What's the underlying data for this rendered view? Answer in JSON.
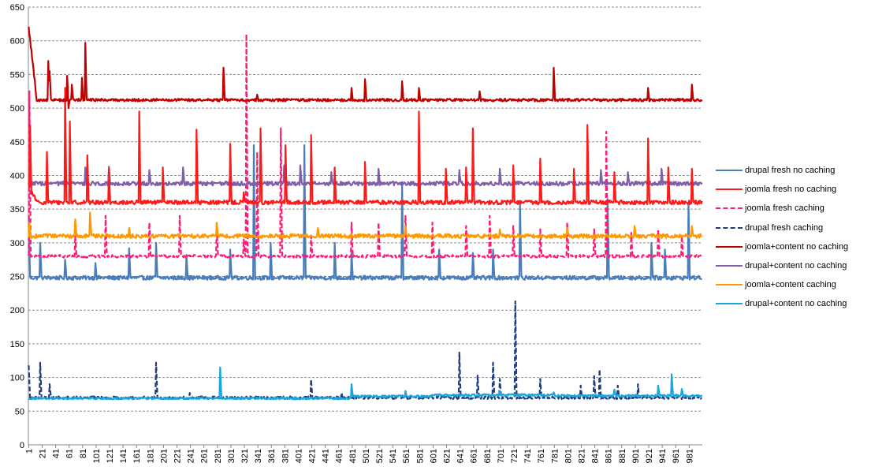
{
  "chart_data": {
    "type": "line",
    "title": "",
    "xlabel": "",
    "ylabel": "",
    "ylim": [
      0,
      650
    ],
    "y_ticks": [
      "0",
      "50",
      "100",
      "150",
      "200",
      "250",
      "300",
      "350",
      "400",
      "450",
      "500",
      "550",
      "600",
      "650"
    ],
    "x_range": [
      1,
      1000
    ],
    "x_tick_labels": [
      "1",
      "21",
      "41",
      "61",
      "81",
      "101",
      "121",
      "141",
      "161",
      "181",
      "201",
      "221",
      "241",
      "261",
      "281",
      "301",
      "321",
      "341",
      "361",
      "381",
      "401",
      "421",
      "441",
      "461",
      "481",
      "501",
      "521",
      "541",
      "561",
      "581",
      "601",
      "621",
      "641",
      "661",
      "681",
      "701",
      "721",
      "741",
      "761",
      "781",
      "801",
      "821",
      "841",
      "861",
      "881",
      "901",
      "921",
      "941",
      "961",
      "981"
    ],
    "grid": "horizontal dashed",
    "legend_position": "right",
    "series": [
      {
        "name": "drupal fresh no caching",
        "color": "#4a7ebb",
        "dash": false,
        "baseline": 248,
        "noise": 3,
        "spikes": [
          [
            1,
            340
          ],
          [
            18,
            300
          ],
          [
            55,
            275
          ],
          [
            100,
            270
          ],
          [
            150,
            292
          ],
          [
            190,
            300
          ],
          [
            235,
            282
          ],
          [
            300,
            290
          ],
          [
            335,
            445
          ],
          [
            360,
            300
          ],
          [
            410,
            445
          ],
          [
            455,
            300
          ],
          [
            480,
            285
          ],
          [
            555,
            390
          ],
          [
            610,
            290
          ],
          [
            660,
            285
          ],
          [
            690,
            290
          ],
          [
            730,
            360
          ],
          [
            860,
            365
          ],
          [
            925,
            300
          ],
          [
            945,
            290
          ],
          [
            980,
            360
          ]
        ]
      },
      {
        "name": "joomla fresh no caching",
        "color": "#ff1a1a",
        "dash": false,
        "baseline": 360,
        "noise": 3,
        "start": 385,
        "spikes": [
          [
            3,
            475
          ],
          [
            28,
            435
          ],
          [
            55,
            530
          ],
          [
            62,
            480
          ],
          [
            88,
            430
          ],
          [
            120,
            410
          ],
          [
            165,
            495
          ],
          [
            200,
            412
          ],
          [
            250,
            468
          ],
          [
            300,
            447
          ],
          [
            320,
            375
          ],
          [
            345,
            470
          ],
          [
            382,
            445
          ],
          [
            420,
            460
          ],
          [
            455,
            412
          ],
          [
            500,
            420
          ],
          [
            580,
            495
          ],
          [
            620,
            410
          ],
          [
            650,
            412
          ],
          [
            660,
            470
          ],
          [
            720,
            415
          ],
          [
            760,
            425
          ],
          [
            810,
            410
          ],
          [
            830,
            475
          ],
          [
            870,
            405
          ],
          [
            920,
            455
          ],
          [
            950,
            412
          ],
          [
            985,
            410
          ]
        ]
      },
      {
        "name": "joomla fresh caching",
        "color": "#ff1a75",
        "dash": true,
        "baseline": 280,
        "noise": 2,
        "spikes": [
          [
            2,
            525
          ],
          [
            70,
            310
          ],
          [
            115,
            340
          ],
          [
            180,
            330
          ],
          [
            225,
            340
          ],
          [
            280,
            320
          ],
          [
            320,
            305
          ],
          [
            324,
            610
          ],
          [
            340,
            435
          ],
          [
            375,
            470
          ],
          [
            420,
            310
          ],
          [
            480,
            330
          ],
          [
            520,
            330
          ],
          [
            560,
            340
          ],
          [
            600,
            330
          ],
          [
            650,
            325
          ],
          [
            685,
            340
          ],
          [
            720,
            325
          ],
          [
            760,
            320
          ],
          [
            800,
            330
          ],
          [
            840,
            320
          ],
          [
            858,
            465
          ],
          [
            895,
            315
          ],
          [
            935,
            320
          ],
          [
            970,
            310
          ]
        ]
      },
      {
        "name": "drupal fresh caching",
        "color": "#1f3d7a",
        "dash": true,
        "baseline": 70,
        "noise": 2,
        "spikes": [
          [
            1,
            118
          ],
          [
            18,
            122
          ],
          [
            32,
            90
          ],
          [
            190,
            122
          ],
          [
            240,
            77
          ],
          [
            420,
            97
          ],
          [
            465,
            77
          ],
          [
            640,
            137
          ],
          [
            667,
            103
          ],
          [
            690,
            122
          ],
          [
            700,
            98
          ],
          [
            723,
            213
          ],
          [
            760,
            98
          ],
          [
            820,
            88
          ],
          [
            840,
            102
          ],
          [
            848,
            112
          ],
          [
            875,
            88
          ],
          [
            905,
            90
          ]
        ]
      },
      {
        "name": "joomla+content no caching",
        "color": "#c00000",
        "dash": false,
        "baseline": 512,
        "noise": 2,
        "start": 620,
        "spikes": [
          [
            30,
            570
          ],
          [
            32,
            555
          ],
          [
            58,
            548
          ],
          [
            60,
            500
          ],
          [
            65,
            535
          ],
          [
            80,
            545
          ],
          [
            85,
            597
          ],
          [
            290,
            560
          ],
          [
            340,
            520
          ],
          [
            480,
            530
          ],
          [
            500,
            543
          ],
          [
            555,
            540
          ],
          [
            580,
            530
          ],
          [
            670,
            525
          ],
          [
            780,
            560
          ],
          [
            920,
            530
          ],
          [
            985,
            535
          ]
        ]
      },
      {
        "name": "drupal+content no caching",
        "color": "#7f5fa8",
        "dash": false,
        "baseline": 388,
        "noise": 3,
        "spikes": [
          [
            85,
            412
          ],
          [
            120,
            413
          ],
          [
            180,
            408
          ],
          [
            230,
            412
          ],
          [
            300,
            410
          ],
          [
            380,
            415
          ],
          [
            404,
            415
          ],
          [
            450,
            405
          ],
          [
            520,
            410
          ],
          [
            640,
            408
          ],
          [
            700,
            410
          ],
          [
            850,
            408
          ],
          [
            890,
            405
          ],
          [
            940,
            410
          ]
        ]
      },
      {
        "name": "joomla+content caching",
        "color": "#ff9900",
        "dash": false,
        "baseline": 310,
        "noise": 3,
        "spikes": [
          [
            2,
            330
          ],
          [
            70,
            335
          ],
          [
            92,
            345
          ],
          [
            150,
            322
          ],
          [
            280,
            330
          ],
          [
            430,
            322
          ],
          [
            560,
            325
          ],
          [
            700,
            320
          ],
          [
            800,
            322
          ],
          [
            900,
            325
          ],
          [
            985,
            325
          ]
        ]
      },
      {
        "name": "drupal+content no caching",
        "color": "#19a7e0",
        "dash": false,
        "baseline": 69,
        "noise": 1.5,
        "step": [
          [
            480,
            72
          ],
          [
            600,
            74
          ],
          [
            780,
            73
          ]
        ],
        "spikes": [
          [
            285,
            115
          ],
          [
            480,
            90
          ],
          [
            560,
            80
          ],
          [
            700,
            80
          ],
          [
            780,
            78
          ],
          [
            870,
            82
          ],
          [
            935,
            88
          ],
          [
            955,
            105
          ],
          [
            970,
            83
          ]
        ]
      }
    ]
  }
}
